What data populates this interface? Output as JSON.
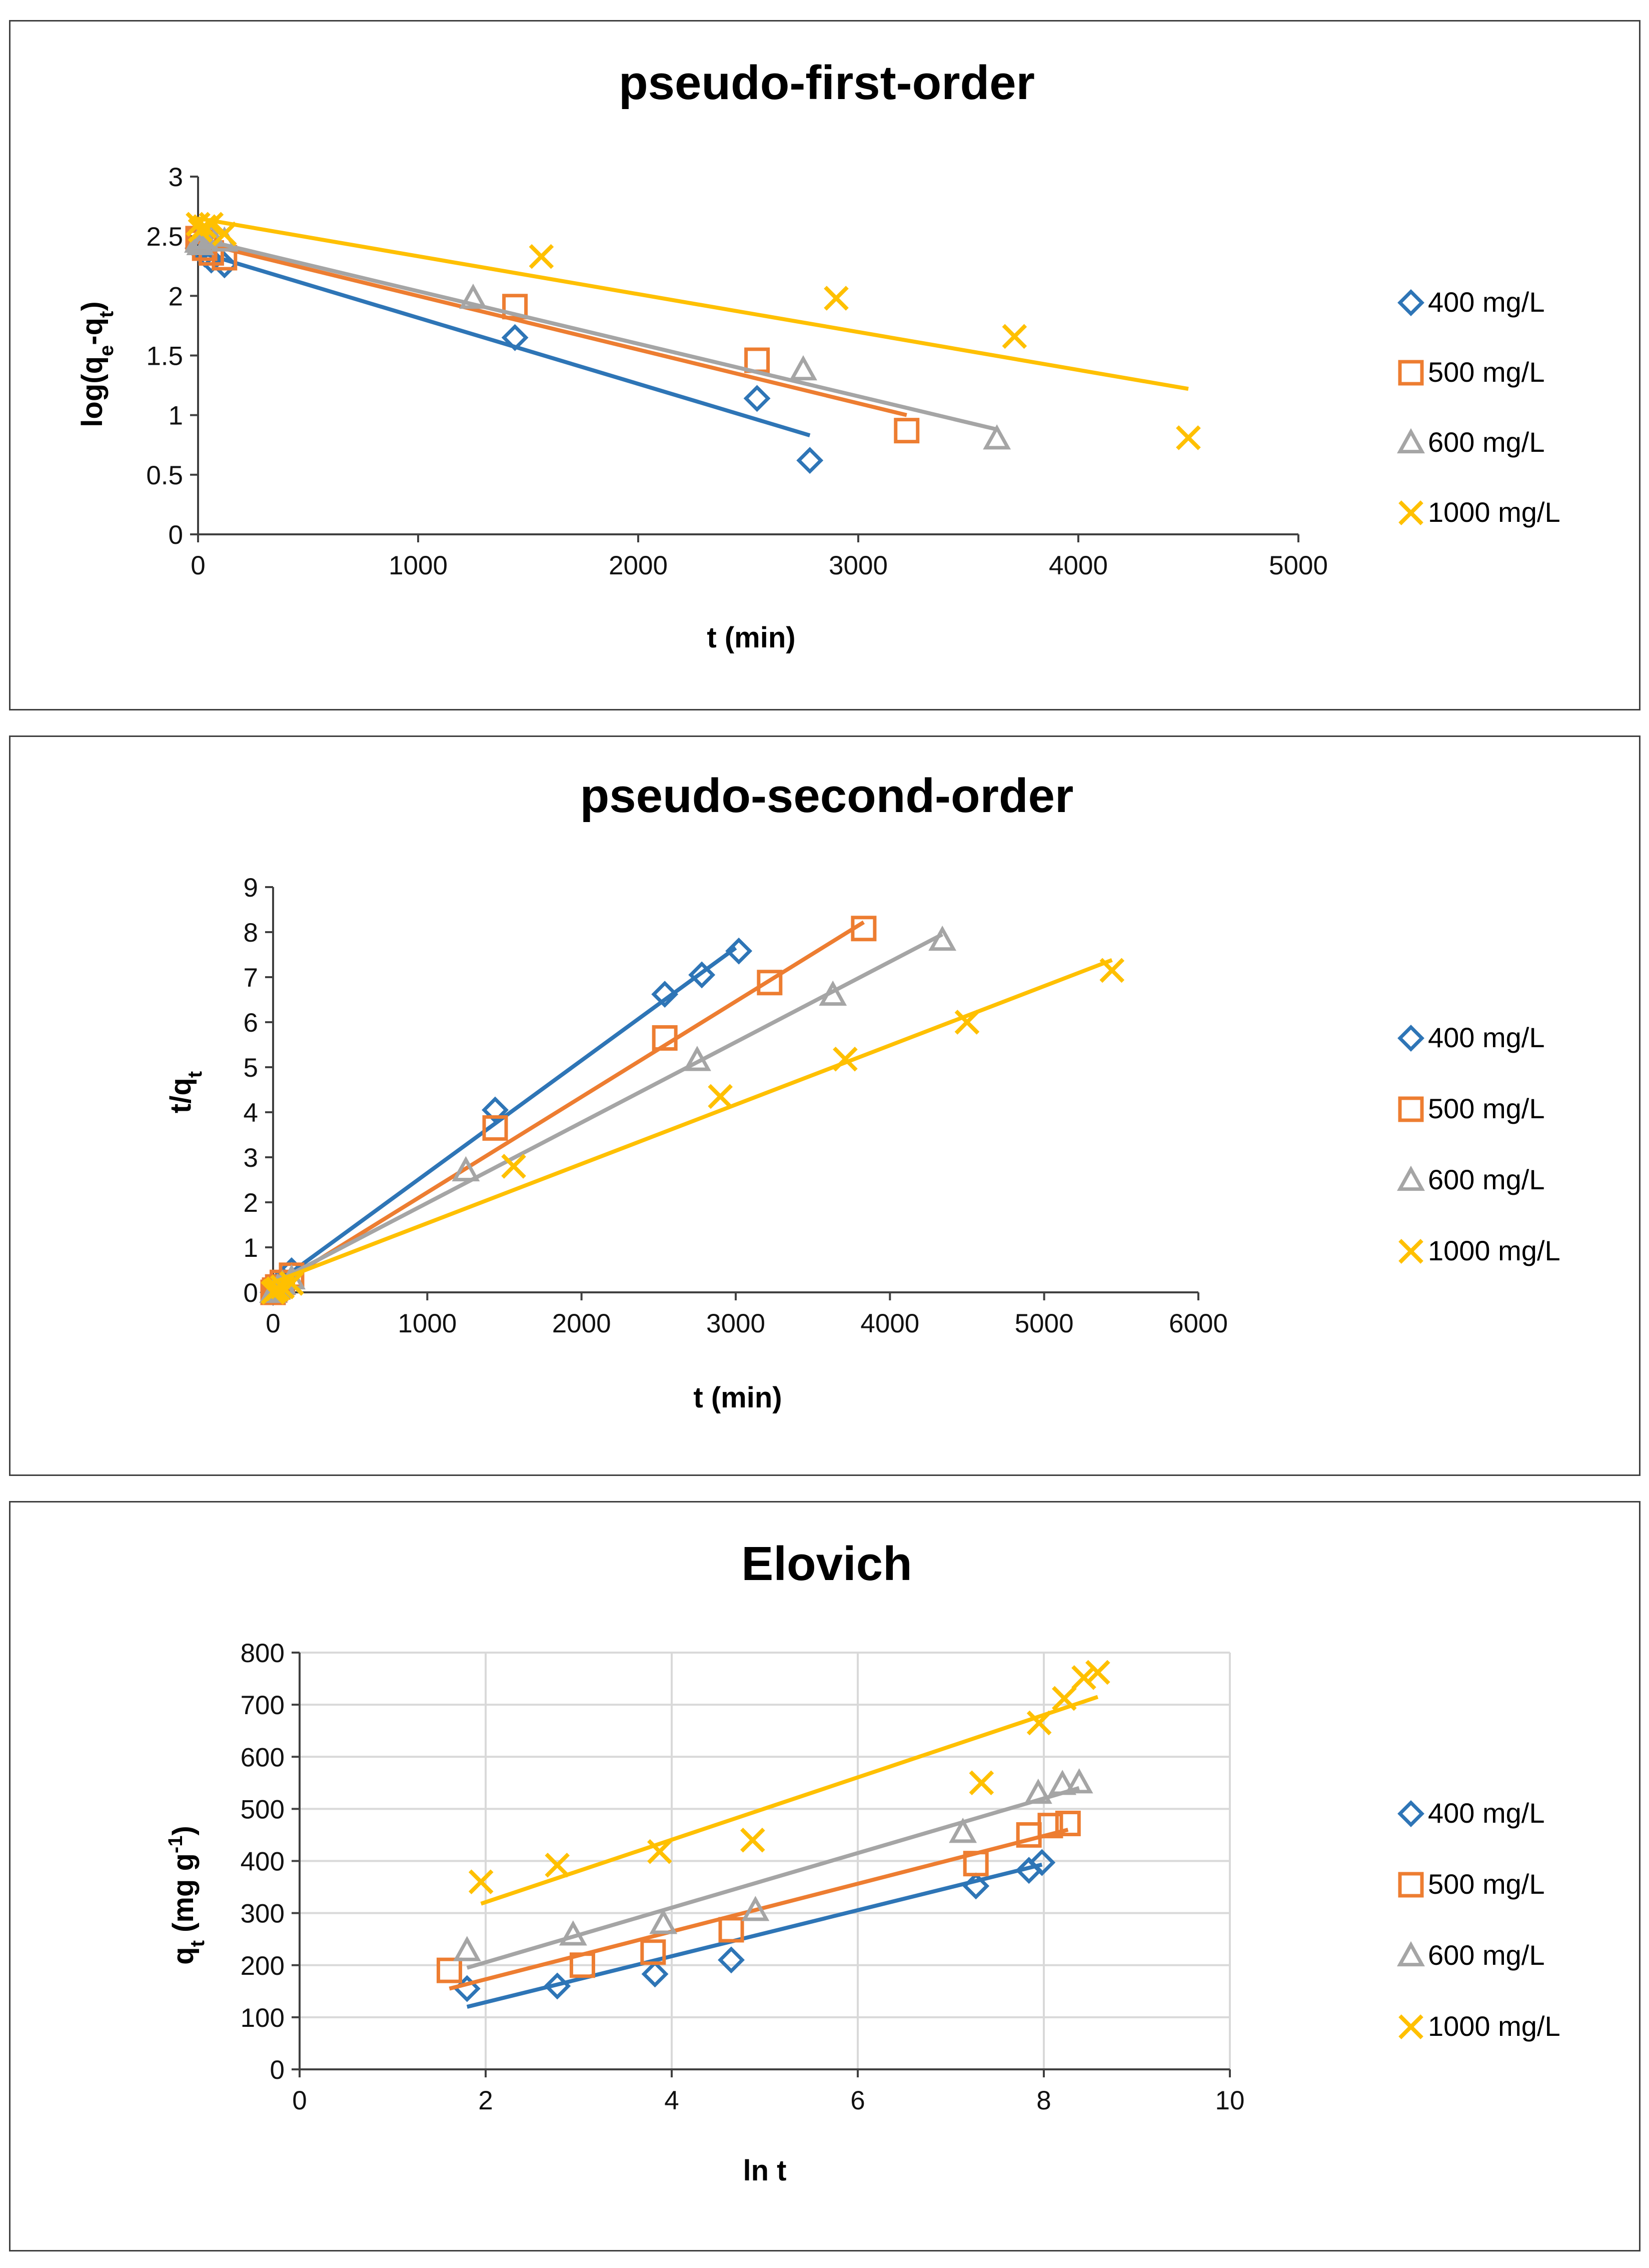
{
  "colors": {
    "s400": "#2e75b6",
    "s500": "#ed7d31",
    "s600": "#a5a5a5",
    "s1000": "#ffc000"
  },
  "chart_data": [
    {
      "type": "scatter",
      "title": "pseudo-first-order",
      "xlabel": "t (min)",
      "ylabel": {
        "base": "log(q",
        "sub1": "e",
        "mid": "-q",
        "sub2": "t",
        "end": ")"
      },
      "xlim": [
        0,
        5000
      ],
      "ylim": [
        0,
        3
      ],
      "xticks": [
        0,
        1000,
        2000,
        3000,
        4000,
        5000
      ],
      "yticks": [
        0,
        0.5,
        1,
        1.5,
        2,
        2.5,
        3
      ],
      "ytick_labels": [
        "0",
        "0.5",
        "1",
        "1.5",
        "2",
        "2.5",
        "3"
      ],
      "grid": false,
      "legend_position": "right",
      "series": [
        {
          "name": "400 mg/L",
          "marker": "diamond",
          "color": "#2e75b6",
          "x": [
            0,
            10,
            30,
            60,
            120,
            1440,
            2540,
            2780
          ],
          "y": [
            2.4,
            2.38,
            2.35,
            2.3,
            2.26,
            1.65,
            1.14,
            0.62
          ],
          "fit": {
            "x": [
              0,
              2780
            ],
            "y": [
              2.37,
              0.83
            ]
          }
        },
        {
          "name": "500 mg/L",
          "marker": "square",
          "color": "#ed7d31",
          "x": [
            0,
            10,
            30,
            60,
            120,
            1440,
            2540,
            3220
          ],
          "y": [
            2.48,
            2.45,
            2.4,
            2.36,
            2.32,
            1.91,
            1.46,
            0.87
          ],
          "fit": {
            "x": [
              0,
              3220
            ],
            "y": [
              2.45,
              1.0
            ]
          }
        },
        {
          "name": "600 mg/L",
          "marker": "triangle",
          "color": "#a5a5a5",
          "x": [
            0,
            10,
            30,
            60,
            120,
            1250,
            2750,
            3630
          ],
          "y": [
            2.45,
            2.43,
            2.48,
            2.5,
            2.46,
            1.98,
            1.38,
            0.8
          ],
          "fit": {
            "x": [
              0,
              3630
            ],
            "y": [
              2.48,
              0.88
            ]
          }
        },
        {
          "name": "1000 mg/L",
          "marker": "cross",
          "color": "#ffc000",
          "x": [
            0,
            10,
            30,
            60,
            120,
            1560,
            2900,
            3710,
            4500
          ],
          "y": [
            2.6,
            2.55,
            2.58,
            2.6,
            2.52,
            2.33,
            1.98,
            1.66,
            0.81
          ],
          "fit": {
            "x": [
              0,
              4500
            ],
            "y": [
              2.65,
              1.22
            ]
          }
        }
      ]
    },
    {
      "type": "scatter",
      "title": "pseudo-second-order",
      "xlabel": "t (min)",
      "ylabel": {
        "base": "t/q",
        "sub1": "t"
      },
      "xlim": [
        0,
        6000
      ],
      "ylim": [
        0,
        9
      ],
      "xticks": [
        0,
        1000,
        2000,
        3000,
        4000,
        5000,
        6000
      ],
      "yticks": [
        0,
        1,
        2,
        3,
        4,
        5,
        6,
        7,
        8,
        9
      ],
      "ytick_labels": [
        "0",
        "1",
        "2",
        "3",
        "4",
        "5",
        "6",
        "7",
        "8",
        "9"
      ],
      "grid": false,
      "legend_position": "right",
      "series": [
        {
          "name": "400 mg/L",
          "marker": "diamond",
          "color": "#2e75b6",
          "x": [
            0,
            10,
            30,
            60,
            120,
            1440,
            2540,
            2780,
            3020
          ],
          "y": [
            0.0,
            0.05,
            0.1,
            0.28,
            0.48,
            4.05,
            6.62,
            7.05,
            7.58
          ],
          "fit": {
            "x": [
              0,
              3000
            ],
            "y": [
              0.15,
              7.65
            ]
          }
        },
        {
          "name": "500 mg/L",
          "marker": "square",
          "color": "#ed7d31",
          "x": [
            0,
            10,
            30,
            60,
            120,
            1440,
            2540,
            3220,
            3830
          ],
          "y": [
            0.0,
            0.05,
            0.12,
            0.22,
            0.38,
            3.65,
            5.65,
            6.88,
            8.08
          ],
          "fit": {
            "x": [
              0,
              3830
            ],
            "y": [
              0.1,
              8.22
            ]
          }
        },
        {
          "name": "600 mg/L",
          "marker": "triangle",
          "color": "#a5a5a5",
          "x": [
            0,
            10,
            30,
            60,
            120,
            1250,
            2750,
            3630,
            4340
          ],
          "y": [
            0.0,
            0.04,
            0.1,
            0.18,
            0.3,
            2.7,
            5.15,
            6.6,
            7.82
          ],
          "fit": {
            "x": [
              0,
              4340
            ],
            "y": [
              0.2,
              7.95
            ]
          }
        },
        {
          "name": "1000 mg/L",
          "marker": "cross",
          "color": "#ffc000",
          "x": [
            0,
            10,
            30,
            60,
            120,
            1560,
            2900,
            3710,
            4500,
            5440
          ],
          "y": [
            0.0,
            0.03,
            0.08,
            0.12,
            0.2,
            2.8,
            4.35,
            5.18,
            6.0,
            7.15
          ],
          "fit": {
            "x": [
              0,
              5440
            ],
            "y": [
              0.22,
              7.38
            ]
          }
        }
      ]
    },
    {
      "type": "scatter",
      "title": "Elovich",
      "xlabel": "ln t",
      "ylabel": {
        "base": "q",
        "sub1": "t",
        "mid": " (mg g",
        "sup": "-1",
        "end": ")"
      },
      "xlim": [
        0,
        10
      ],
      "ylim": [
        0,
        800
      ],
      "xticks": [
        0,
        2,
        4,
        6,
        8,
        10
      ],
      "yticks": [
        0,
        100,
        200,
        300,
        400,
        500,
        600,
        700,
        800
      ],
      "ytick_labels": [
        "0",
        "100",
        "200",
        "300",
        "400",
        "500",
        "600",
        "700",
        "800"
      ],
      "grid": true,
      "legend_position": "right",
      "series": [
        {
          "name": "400 mg/L",
          "marker": "diamond",
          "color": "#2e75b6",
          "x": [
            1.8,
            2.77,
            3.82,
            4.64,
            7.27,
            7.84,
            7.98
          ],
          "y": [
            155,
            160,
            183,
            210,
            352,
            382,
            397
          ],
          "fit": {
            "x": [
              1.8,
              7.98
            ],
            "y": [
              120,
              393
            ]
          }
        },
        {
          "name": "500 mg/L",
          "marker": "square",
          "color": "#ed7d31",
          "x": [
            1.61,
            3.04,
            3.8,
            4.64,
            7.27,
            7.84,
            8.07,
            8.26
          ],
          "y": [
            190,
            200,
            225,
            268,
            395,
            450,
            468,
            472
          ],
          "fit": {
            "x": [
              1.61,
              8.26
            ],
            "y": [
              155,
              460
            ]
          }
        },
        {
          "name": "600 mg/L",
          "marker": "triangle",
          "color": "#a5a5a5",
          "x": [
            1.8,
            2.94,
            3.91,
            4.9,
            7.13,
            7.94,
            8.2,
            8.38
          ],
          "y": [
            228,
            258,
            280,
            305,
            455,
            530,
            547,
            550
          ],
          "fit": {
            "x": [
              1.8,
              8.38
            ],
            "y": [
              195,
              540
            ]
          }
        },
        {
          "name": "1000 mg/L",
          "marker": "cross",
          "color": "#ffc000",
          "x": [
            1.95,
            2.77,
            3.87,
            4.87,
            7.33,
            7.95,
            8.22,
            8.43,
            8.58
          ],
          "y": [
            360,
            392,
            418,
            440,
            550,
            665,
            712,
            752,
            762
          ],
          "fit": {
            "x": [
              1.95,
              8.58
            ],
            "y": [
              318,
              715
            ]
          }
        }
      ]
    }
  ]
}
